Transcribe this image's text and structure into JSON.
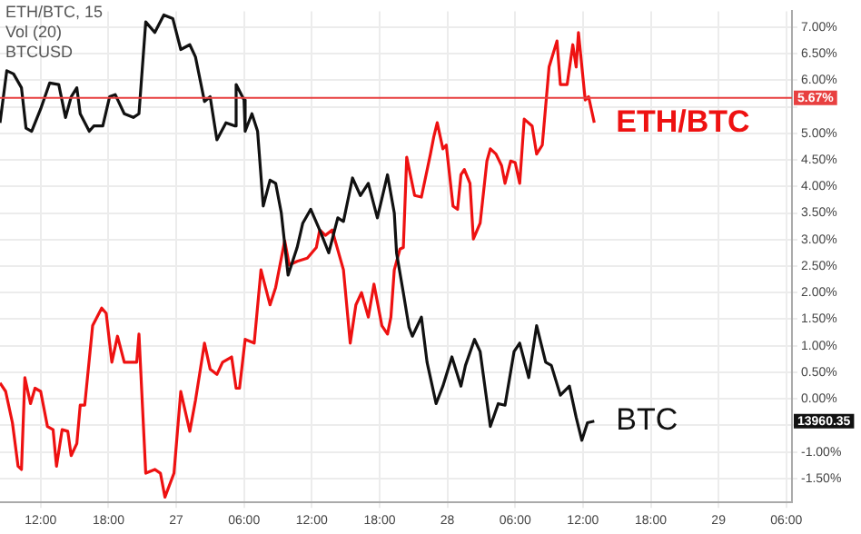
{
  "chart_data": {
    "type": "line",
    "annotations": [
      "ETH/BTC, 15",
      "Vol (20)",
      "BTCUSD",
      "13960.35"
    ],
    "xlim": [
      "--12-26T08:24",
      "--12-29T06:30"
    ],
    "xticks": [
      {
        "value": "--12-26T12:00",
        "label": "12:00"
      },
      {
        "value": "--12-26T18:00",
        "label": "18:00"
      },
      {
        "value": "--12-27",
        "label": "27"
      },
      {
        "value": "--12-27T06:00",
        "label": "06:00"
      },
      {
        "value": "--12-27T12:00",
        "label": "12:00"
      },
      {
        "value": "--12-27T18:00",
        "label": "18:00"
      },
      {
        "value": "--12-28",
        "label": "28"
      },
      {
        "value": "--12-28T06:00",
        "label": "06:00"
      },
      {
        "value": "--12-28T12:00",
        "label": "12:00"
      },
      {
        "value": "--12-28T18:00",
        "label": "18:00"
      },
      {
        "value": "--12-29",
        "label": "29"
      },
      {
        "value": "--12-29T06:00",
        "label": "06:00"
      }
    ],
    "ylim": [
      -1.95,
      7.3
    ],
    "yticks": [
      {
        "value": -1.5,
        "label": "-1.50%"
      },
      {
        "value": -1,
        "label": "-1.00%"
      },
      {
        "value": -0.5,
        "label": null
      },
      {
        "value": 0,
        "label": "0.00%"
      },
      {
        "value": 0.5,
        "label": "0.50%"
      },
      {
        "value": 1,
        "label": "1.00%"
      },
      {
        "value": 1.5,
        "label": "1.50%"
      },
      {
        "value": 2,
        "label": "2.00%"
      },
      {
        "value": 2.5,
        "label": "2.50%"
      },
      {
        "value": 3,
        "label": "3.00%"
      },
      {
        "value": 3.5,
        "label": "3.50%"
      },
      {
        "value": 4,
        "label": "4.00%"
      },
      {
        "value": 4.5,
        "label": "4.50%"
      },
      {
        "value": 5,
        "label": "5.00%"
      },
      {
        "value": 5.5,
        "label": null
      },
      {
        "value": 6,
        "label": "6.00%"
      },
      {
        "value": 6.5,
        "label": "6.50%"
      },
      {
        "value": 7,
        "label": "7.00%"
      }
    ],
    "grid": true,
    "legend": false,
    "marker": "none",
    "line_style": "solid",
    "ref_lines": [
      {
        "axis": "y",
        "value": 5.67,
        "label": "5.67%",
        "color": "#e84040"
      }
    ],
    "series": [
      {
        "name": "BTC",
        "color": "#111111",
        "x": [
          "--12-26T08:24",
          "--12-26T09:00",
          "--12-26T09:36",
          "--12-26T10:18",
          "--12-26T10:42",
          "--12-26T11:12",
          "--12-26T12:00",
          "--12-26T12:48",
          "--12-26T13:36",
          "--12-26T14:12",
          "--12-26T14:42",
          "--12-26T15:12",
          "--12-26T15:30",
          "--12-26T16:18",
          "--12-26T16:42",
          "--12-26T17:30",
          "--12-26T18:06",
          "--12-26T18:36",
          "--12-26T19:24",
          "--12-26T20:12",
          "--12-26T20:42",
          "--12-26T21:18",
          "--12-26T22:06",
          "--12-26T22:54",
          "--12-26T23:42",
          "--12-27T00:24",
          "--12-27T01:12",
          "--12-27T01:42",
          "--12-27T02:30",
          "--12-27T03:00",
          "--12-27T03:36",
          "--12-27T04:24",
          "--12-27T05:12",
          "--12-27T05:18",
          "--12-27T06:00",
          "--12-27T06:06",
          "--12-27T06:42",
          "--12-27T07:12",
          "--12-27T07:42",
          "--12-27T08:18",
          "--12-27T08:48",
          "--12-27T09:18",
          "--12-27T09:54",
          "--12-27T10:42",
          "--12-27T11:12",
          "--12-27T11:54",
          "--12-27T12:42",
          "--12-27T13:30",
          "--12-27T14:18",
          "--12-27T14:48",
          "--12-27T15:36",
          "--12-27T16:18",
          "--12-27T17:00",
          "--12-27T17:48",
          "--12-27T18:42",
          "--12-27T19:18",
          "--12-27T19:30",
          "--12-27T20:06",
          "--12-27T20:36",
          "--12-27T20:54",
          "--12-27T21:42",
          "--12-27T22:12",
          "--12-27T23:00",
          "--12-27T23:36",
          "--12-28T00:24",
          "--12-28T01:12",
          "--12-28T01:36",
          "--12-28T02:24",
          "--12-28T02:54",
          "--12-28T03:48",
          "--12-28T04:30",
          "--12-28T05:06",
          "--12-28T05:54",
          "--12-28T06:24",
          "--12-28T07:12",
          "--12-28T07:54",
          "--12-28T08:42",
          "--12-28T09:12",
          "--12-28T10:00",
          "--12-28T10:48",
          "--12-28T11:24",
          "--12-28T11:54",
          "--12-28T12:24",
          "--12-28T13:00"
        ],
        "values": [
          5.2,
          6.18,
          6.12,
          5.86,
          5.1,
          5.04,
          5.46,
          5.95,
          5.92,
          5.3,
          5.69,
          5.86,
          5.37,
          5.04,
          5.14,
          5.14,
          5.69,
          5.73,
          5.37,
          5.3,
          5.37,
          7.1,
          6.9,
          7.23,
          7.16,
          6.58,
          6.67,
          6.44,
          5.6,
          5.69,
          4.88,
          5.2,
          5.14,
          5.92,
          5.63,
          5.04,
          5.37,
          5.04,
          3.63,
          4.12,
          4.06,
          3.5,
          2.33,
          2.85,
          3.31,
          3.57,
          3.18,
          2.75,
          3.41,
          3.34,
          4.16,
          3.83,
          4.06,
          3.41,
          4.22,
          3.5,
          2.75,
          2.0,
          1.35,
          1.18,
          1.54,
          0.69,
          -0.09,
          0.24,
          0.79,
          0.24,
          0.63,
          1.12,
          0.89,
          -0.52,
          -0.09,
          -0.12,
          0.89,
          1.05,
          0.4,
          1.38,
          0.69,
          0.63,
          0.07,
          0.24,
          -0.35,
          -0.78,
          -0.45,
          -0.42
        ]
      },
      {
        "name": "ETH/BTC",
        "color": "#ee1111",
        "x": [
          "--12-26T08:24",
          "--12-26T08:54",
          "--12-26T09:30",
          "--12-26T10:00",
          "--12-26T10:18",
          "--12-26T10:36",
          "--12-26T11:06",
          "--12-26T11:30",
          "--12-26T12:00",
          "--12-26T12:36",
          "--12-26T13:06",
          "--12-26T13:24",
          "--12-26T13:54",
          "--12-26T14:24",
          "--12-26T14:42",
          "--12-26T15:12",
          "--12-26T15:30",
          "--12-26T15:54",
          "--12-26T16:36",
          "--12-26T17:24",
          "--12-26T17:48",
          "--12-26T18:18",
          "--12-26T18:48",
          "--12-26T19:24",
          "--12-26T20:30",
          "--12-26T20:42",
          "--12-26T21:18",
          "--12-26T22:06",
          "--12-26T22:36",
          "--12-26T23:00",
          "--12-26T23:48",
          "--12-27T00:24",
          "--12-27T01:12",
          "--12-27T01:42",
          "--12-27T02:30",
          "--12-27T03:00",
          "--12-27T03:36",
          "--12-27T04:06",
          "--12-27T04:54",
          "--12-27T05:18",
          "--12-27T05:36",
          "--12-27T06:06",
          "--12-27T06:54",
          "--12-27T07:30",
          "--12-27T08:18",
          "--12-27T08:48",
          "--12-27T09:36",
          "--12-27T10:00",
          "--12-27T10:42",
          "--12-27T11:36",
          "--12-27T12:24",
          "--12-27T12:42",
          "--12-27T13:12",
          "--12-27T13:48",
          "--12-27T14:48",
          "--12-27T15:24",
          "--12-27T15:54",
          "--12-27T16:24",
          "--12-27T17:00",
          "--12-27T17:30",
          "--12-27T18:12",
          "--12-27T18:42",
          "--12-27T19:00",
          "--12-27T19:18",
          "--12-27T19:48",
          "--12-27T20:06",
          "--12-27T20:24",
          "--12-27T21:06",
          "--12-27T21:42",
          "--12-27T22:30",
          "--12-27T22:48",
          "--12-27T23:06",
          "--12-27T23:36",
          "--12-27T23:54",
          "--12-28T00:30",
          "--12-28T00:54",
          "--12-28T01:12",
          "--12-28T01:30",
          "--12-28T02:00",
          "--12-28T02:18",
          "--12-28T02:54",
          "--12-28T03:30",
          "--12-28T03:48",
          "--12-28T04:18",
          "--12-28T04:48",
          "--12-28T05:06",
          "--12-28T05:36",
          "--12-28T06:00",
          "--12-28T06:24",
          "--12-28T06:48",
          "--12-28T07:30",
          "--12-28T07:54",
          "--12-28T08:24",
          "--12-28T09:00",
          "--12-28T09:42",
          "--12-28T10:00",
          "--12-28T10:36",
          "--12-28T11:06",
          "--12-28T11:24",
          "--12-28T11:36",
          "--12-28T12:12",
          "--12-28T12:30",
          "--12-28T13:00"
        ],
        "values": [
          0.3,
          0.14,
          -0.45,
          -1.27,
          -1.33,
          0.4,
          -0.09,
          0.2,
          0.14,
          -0.52,
          -0.58,
          -1.27,
          -0.58,
          -0.61,
          -1.07,
          -0.84,
          -0.12,
          -0.12,
          1.38,
          1.71,
          1.61,
          0.69,
          1.18,
          0.69,
          0.69,
          1.22,
          -1.4,
          -1.33,
          -1.4,
          -1.85,
          -1.4,
          0.14,
          -0.61,
          -0.03,
          1.05,
          0.56,
          0.46,
          0.69,
          0.79,
          0.2,
          0.2,
          1.12,
          1.05,
          2.43,
          1.77,
          2.1,
          2.98,
          2.52,
          2.59,
          2.65,
          2.85,
          3.18,
          3.08,
          3.18,
          2.43,
          1.05,
          1.77,
          2.0,
          1.54,
          2.16,
          1.38,
          1.22,
          1.54,
          2.43,
          2.82,
          2.85,
          4.55,
          3.83,
          3.8,
          4.61,
          4.94,
          5.2,
          4.71,
          4.78,
          3.63,
          3.57,
          4.22,
          4.32,
          4.06,
          3.01,
          3.31,
          4.48,
          4.71,
          4.61,
          4.39,
          4.06,
          4.48,
          4.45,
          4.06,
          5.27,
          5.14,
          4.61,
          4.78,
          6.25,
          6.74,
          5.92,
          5.92,
          6.67,
          6.25,
          6.9,
          5.63,
          5.69,
          5.2
        ]
      }
    ]
  }
}
